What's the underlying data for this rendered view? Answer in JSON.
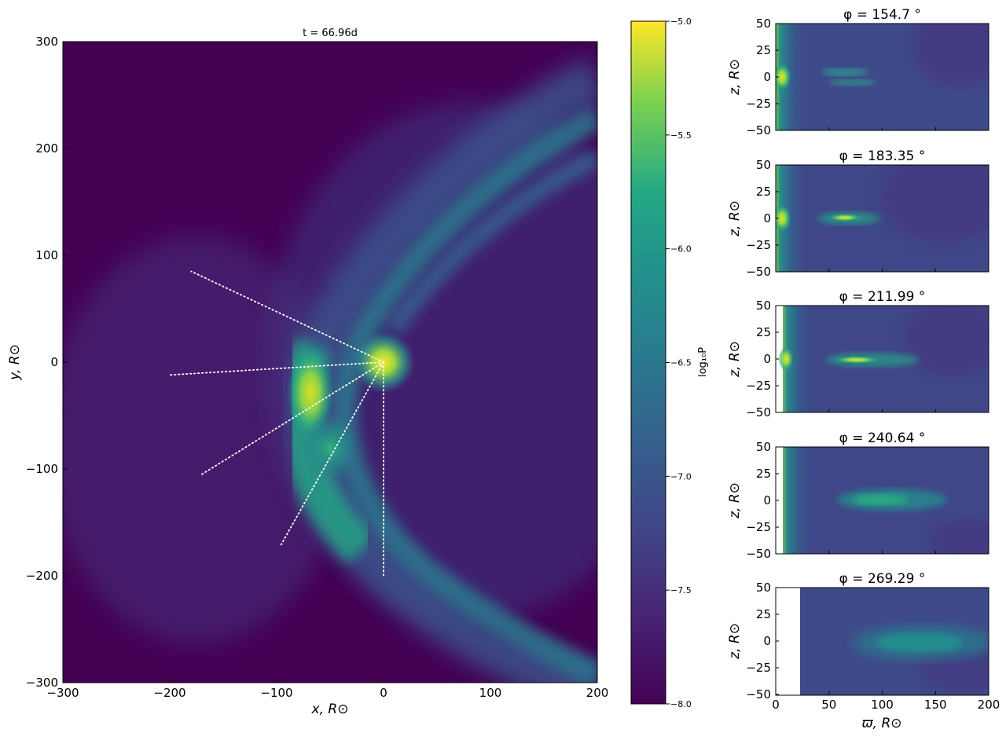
{
  "chart_data": [
    {
      "type": "heatmap",
      "title": "t = 66.96d",
      "xlabel": "x, R⊙",
      "ylabel": "y, R⊙",
      "xlim": [
        -300,
        200
      ],
      "ylim": [
        -300,
        300
      ],
      "xticks": [
        "−300",
        "−200",
        "−100",
        "0",
        "100",
        "200"
      ],
      "yticks": [
        "300",
        "200",
        "100",
        "0",
        "−100",
        "−200",
        "−300"
      ],
      "dotted_rays": [
        {
          "from": [
            0,
            0
          ],
          "to": [
            -180,
            85
          ]
        },
        {
          "from": [
            0,
            0
          ],
          "to": [
            -200,
            -12
          ]
        },
        {
          "from": [
            0,
            0
          ],
          "to": [
            -170,
            -105
          ]
        },
        {
          "from": [
            0,
            0
          ],
          "to": [
            -97,
            -173
          ]
        },
        {
          "from": [
            0,
            0
          ],
          "to": [
            0,
            -200
          ]
        }
      ]
    },
    {
      "type": "colorbar",
      "label": "log₁₀P",
      "range": [
        -8.0,
        -5.0
      ],
      "ticks": [
        "−5.0",
        "−5.5",
        "−6.0",
        "−6.5",
        "−7.0",
        "−7.5",
        "−8.0"
      ]
    },
    {
      "type": "heatmap",
      "panels": [
        {
          "title": "φ = 154.7 °"
        },
        {
          "title": "φ = 183.35 °"
        },
        {
          "title": "φ = 211.99 °"
        },
        {
          "title": "φ = 240.64 °"
        },
        {
          "title": "φ = 269.29 °"
        }
      ],
      "ylabel": "z, R⊙",
      "xlabel": "ϖ, R⊙",
      "xlim": [
        0,
        200
      ],
      "ylim": [
        -50,
        50
      ],
      "yticks": [
        "50",
        "25",
        "0",
        "−25",
        "−50"
      ],
      "xticks": [
        "0",
        "50",
        "100",
        "150",
        "200"
      ]
    }
  ]
}
